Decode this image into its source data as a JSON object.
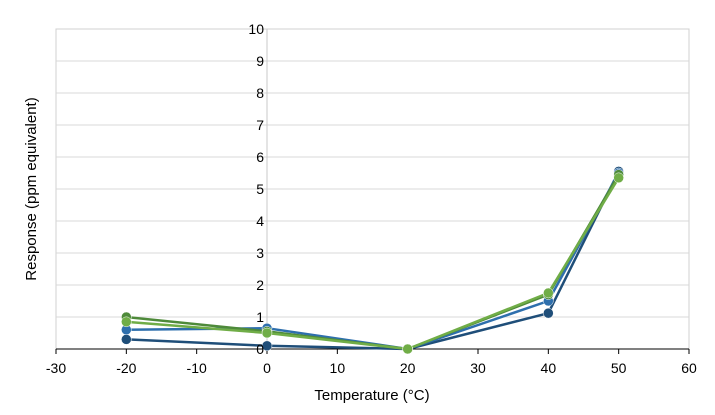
{
  "chart_data": {
    "type": "line",
    "title": "",
    "xlabel": "Temperature (°C)",
    "ylabel": "Response (ppm equivalent)",
    "xlim": [
      -30,
      60
    ],
    "ylim": [
      0,
      10
    ],
    "x_ticks": [
      -30,
      -20,
      -10,
      0,
      10,
      20,
      30,
      40,
      50,
      60
    ],
    "y_ticks": [
      0,
      1,
      2,
      3,
      4,
      5,
      6,
      7,
      8,
      9,
      10
    ],
    "grid": "horizontal",
    "legend": "none",
    "series": [
      {
        "color": "#1f4e79",
        "points": [
          [
            -20,
            0.3
          ],
          [
            0,
            0.1
          ],
          [
            20,
            0.0
          ],
          [
            40,
            1.12
          ],
          [
            50,
            5.55
          ]
        ]
      },
      {
        "color": "#2e6fad",
        "points": [
          [
            -20,
            0.6
          ],
          [
            0,
            0.65
          ],
          [
            20,
            0.0
          ],
          [
            40,
            1.5
          ],
          [
            50,
            5.5
          ]
        ]
      },
      {
        "color": "#4e8a3a",
        "points": [
          [
            -20,
            1.0
          ],
          [
            0,
            0.55
          ],
          [
            20,
            0.0
          ],
          [
            40,
            1.7
          ],
          [
            50,
            5.45
          ]
        ]
      },
      {
        "color": "#70ad47",
        "points": [
          [
            -20,
            0.85
          ],
          [
            0,
            0.5
          ],
          [
            20,
            0.0
          ],
          [
            40,
            1.75
          ],
          [
            50,
            5.35
          ]
        ]
      }
    ]
  }
}
